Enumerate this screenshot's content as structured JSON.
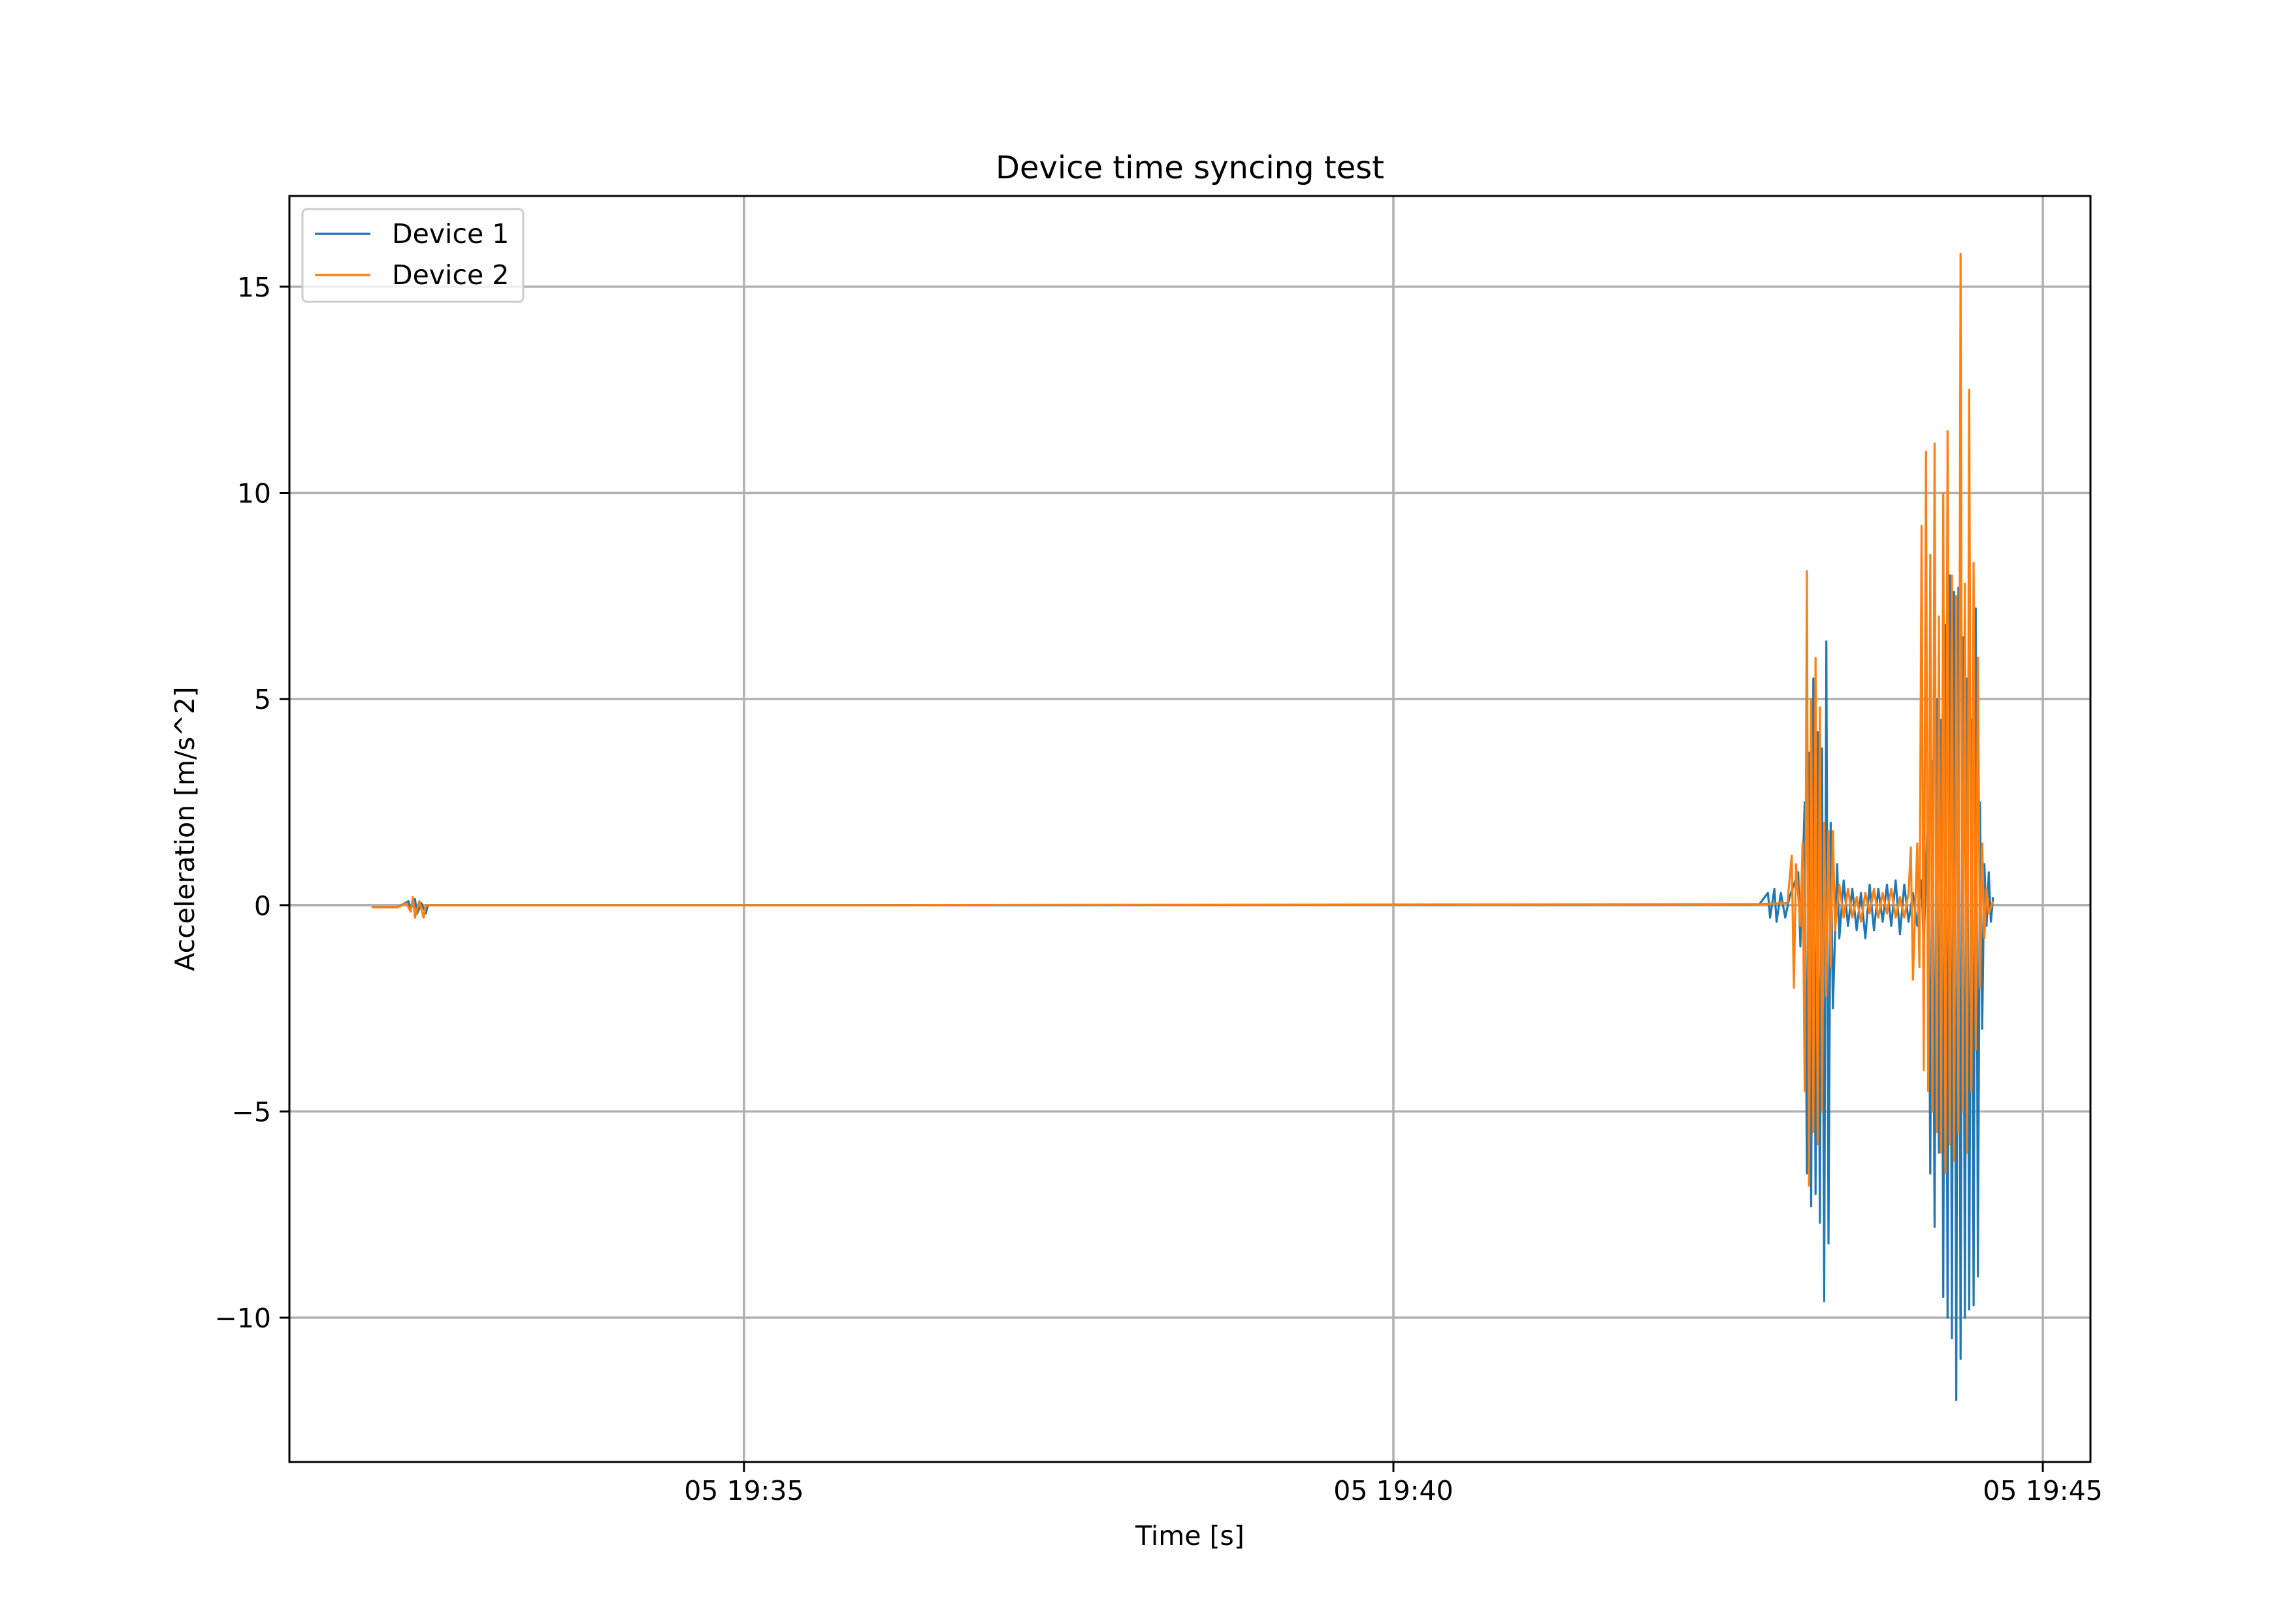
{
  "chart_data": {
    "type": "line",
    "title": "Device time syncing test",
    "xlabel": "Time [s]",
    "ylabel": "Acceleration [m/s^2]",
    "grid": true,
    "legend_position": "top-left",
    "xlim": [
      "05 19:31:30",
      "05 19:45:22"
    ],
    "ylim": [
      -13.5,
      17.2
    ],
    "x_ticks": [
      {
        "label": "05 19:35",
        "value": "05 19:35:00"
      },
      {
        "label": "05 19:40",
        "value": "05 19:40:00"
      },
      {
        "label": "05 19:45",
        "value": "05 19:45:00"
      }
    ],
    "y_ticks": [
      {
        "label": "−10",
        "value": -10
      },
      {
        "label": "−5",
        "value": -5
      },
      {
        "label": "0",
        "value": 0
      },
      {
        "label": "5",
        "value": 5
      },
      {
        "label": "10",
        "value": 10
      },
      {
        "label": "15",
        "value": 15
      }
    ],
    "series": [
      {
        "name": "Device 1",
        "color": "#1f77b4",
        "points": [
          [
            "05 19:32:08",
            -0.05
          ],
          [
            "05 19:32:20",
            -0.05
          ],
          [
            "05 19:32:25",
            0.1
          ],
          [
            "05 19:32:26",
            -0.1
          ],
          [
            "05 19:32:28",
            0.15
          ],
          [
            "05 19:32:29",
            -0.2
          ],
          [
            "05 19:32:31",
            0.05
          ],
          [
            "05 19:32:33",
            -0.2
          ],
          [
            "05 19:32:34",
            0.0
          ],
          [
            "05 19:36:00",
            0.0
          ],
          [
            "05 19:42:49",
            0.02
          ],
          [
            "05 19:42:53",
            0.3
          ],
          [
            "05 19:42:54",
            -0.3
          ],
          [
            "05 19:42:56",
            0.4
          ],
          [
            "05 19:42:57",
            -0.4
          ],
          [
            "05 19:42:59",
            0.3
          ],
          [
            "05 19:43:01",
            -0.3
          ],
          [
            "05 19:43:03",
            0.2
          ],
          [
            "05 19:43:07",
            0.8
          ],
          [
            "05 19:43:08",
            -1.0
          ],
          [
            "05 19:43:10",
            2.5
          ],
          [
            "05 19:43:11",
            -6.5
          ],
          [
            "05 19:43:12",
            3.7
          ],
          [
            "05 19:43:13",
            -7.3
          ],
          [
            "05 19:43:14",
            5.5
          ],
          [
            "05 19:43:15",
            -7.0
          ],
          [
            "05 19:43:16",
            4.2
          ],
          [
            "05 19:43:17",
            -7.7
          ],
          [
            "05 19:43:18",
            3.8
          ],
          [
            "05 19:43:19",
            -9.6
          ],
          [
            "05 19:43:20",
            6.4
          ],
          [
            "05 19:43:21",
            -8.2
          ],
          [
            "05 19:43:22",
            2.0
          ],
          [
            "05 19:43:23",
            -2.5
          ],
          [
            "05 19:43:25",
            1.0
          ],
          [
            "05 19:43:26",
            -0.8
          ],
          [
            "05 19:43:28",
            0.6
          ],
          [
            "05 19:43:30",
            -0.5
          ],
          [
            "05 19:43:32",
            0.4
          ],
          [
            "05 19:43:34",
            -0.6
          ],
          [
            "05 19:43:36",
            0.3
          ],
          [
            "05 19:43:38",
            -0.8
          ],
          [
            "05 19:43:40",
            0.5
          ],
          [
            "05 19:43:42",
            -0.6
          ],
          [
            "05 19:43:44",
            0.4
          ],
          [
            "05 19:43:46",
            -0.4
          ],
          [
            "05 19:43:48",
            0.5
          ],
          [
            "05 19:43:50",
            -0.5
          ],
          [
            "05 19:43:52",
            0.6
          ],
          [
            "05 19:43:54",
            -0.7
          ],
          [
            "05 19:43:56",
            0.5
          ],
          [
            "05 19:43:58",
            -0.4
          ],
          [
            "05 19:44:00",
            0.3
          ],
          [
            "05 19:44:02",
            -0.5
          ],
          [
            "05 19:44:04",
            0.6
          ],
          [
            "05 19:44:05",
            -1.0
          ],
          [
            "05 19:44:07",
            2.5
          ],
          [
            "05 19:44:08",
            -6.5
          ],
          [
            "05 19:44:09",
            3.5
          ],
          [
            "05 19:44:10",
            -7.8
          ],
          [
            "05 19:44:11",
            5.0
          ],
          [
            "05 19:44:12",
            -6.0
          ],
          [
            "05 19:44:13",
            4.5
          ],
          [
            "05 19:44:14",
            -9.5
          ],
          [
            "05 19:44:15",
            6.8
          ],
          [
            "05 19:44:16",
            -10.0
          ],
          [
            "05 19:44:17",
            8.0
          ],
          [
            "05 19:44:18",
            -10.5
          ],
          [
            "05 19:44:19",
            7.6
          ],
          [
            "05 19:44:20",
            -12.0
          ],
          [
            "05 19:44:21",
            7.7
          ],
          [
            "05 19:44:22",
            -11.0
          ],
          [
            "05 19:44:23",
            6.5
          ],
          [
            "05 19:44:24",
            -10.0
          ],
          [
            "05 19:44:25",
            5.5
          ],
          [
            "05 19:44:26",
            -9.8
          ],
          [
            "05 19:44:27",
            4.5
          ],
          [
            "05 19:44:28",
            -9.7
          ],
          [
            "05 19:44:29",
            7.2
          ],
          [
            "05 19:44:30",
            -9.0
          ],
          [
            "05 19:44:31",
            2.5
          ],
          [
            "05 19:44:32",
            -3.0
          ],
          [
            "05 19:44:33",
            1.0
          ],
          [
            "05 19:44:34",
            -0.5
          ],
          [
            "05 19:44:35",
            0.8
          ],
          [
            "05 19:44:36",
            -0.4
          ],
          [
            "05 19:44:37",
            0.2
          ]
        ]
      },
      {
        "name": "Device 2",
        "color": "#ff7f0e",
        "points": [
          [
            "05 19:32:08",
            -0.05
          ],
          [
            "05 19:32:20",
            -0.05
          ],
          [
            "05 19:32:24",
            0.05
          ],
          [
            "05 19:32:26",
            -0.15
          ],
          [
            "05 19:32:27",
            0.2
          ],
          [
            "05 19:32:28",
            -0.3
          ],
          [
            "05 19:32:30",
            0.1
          ],
          [
            "05 19:32:32",
            -0.3
          ],
          [
            "05 19:32:33",
            0.0
          ],
          [
            "05 19:36:00",
            0.0
          ],
          [
            "05 19:42:49",
            0.03
          ],
          [
            "05 19:43:02",
            0.05
          ],
          [
            "05 19:43:04",
            1.2
          ],
          [
            "05 19:43:05",
            -2.0
          ],
          [
            "05 19:43:06",
            1.0
          ],
          [
            "05 19:43:08",
            -0.5
          ],
          [
            "05 19:43:09",
            1.5
          ],
          [
            "05 19:43:10",
            -4.5
          ],
          [
            "05 19:43:11",
            8.1
          ],
          [
            "05 19:43:12",
            -6.8
          ],
          [
            "05 19:43:13",
            5.0
          ],
          [
            "05 19:43:14",
            -5.5
          ],
          [
            "05 19:43:15",
            6.0
          ],
          [
            "05 19:43:16",
            -5.8
          ],
          [
            "05 19:43:17",
            4.8
          ],
          [
            "05 19:43:18",
            -5.0
          ],
          [
            "05 19:43:19",
            2.0
          ],
          [
            "05 19:43:20",
            -2.2
          ],
          [
            "05 19:43:21",
            1.8
          ],
          [
            "05 19:43:22",
            -1.5
          ],
          [
            "05 19:43:23",
            1.8
          ],
          [
            "05 19:43:24",
            -0.6
          ],
          [
            "05 19:43:26",
            0.5
          ],
          [
            "05 19:43:28",
            -0.3
          ],
          [
            "05 19:43:30",
            0.4
          ],
          [
            "05 19:43:32",
            -0.3
          ],
          [
            "05 19:43:34",
            0.2
          ],
          [
            "05 19:43:36",
            -0.4
          ],
          [
            "05 19:43:38",
            0.3
          ],
          [
            "05 19:43:40",
            -0.2
          ],
          [
            "05 19:43:42",
            0.4
          ],
          [
            "05 19:43:44",
            -0.3
          ],
          [
            "05 19:43:46",
            0.3
          ],
          [
            "05 19:43:48",
            -0.2
          ],
          [
            "05 19:43:50",
            0.4
          ],
          [
            "05 19:43:52",
            -0.3
          ],
          [
            "05 19:43:54",
            0.2
          ],
          [
            "05 19:43:56",
            -0.3
          ],
          [
            "05 19:43:58",
            0.3
          ],
          [
            "05 19:43:59",
            1.4
          ],
          [
            "05 19:44:00",
            -1.8
          ],
          [
            "05 19:44:02",
            1.5
          ],
          [
            "05 19:44:03",
            -1.5
          ],
          [
            "05 19:44:04",
            9.2
          ],
          [
            "05 19:44:05",
            -4.0
          ],
          [
            "05 19:44:06",
            11.0
          ],
          [
            "05 19:44:07",
            -4.5
          ],
          [
            "05 19:44:08",
            8.5
          ],
          [
            "05 19:44:09",
            -5.0
          ],
          [
            "05 19:44:10",
            11.2
          ],
          [
            "05 19:44:11",
            -5.5
          ],
          [
            "05 19:44:12",
            7.0
          ],
          [
            "05 19:44:13",
            -6.0
          ],
          [
            "05 19:44:14",
            10.0
          ],
          [
            "05 19:44:15",
            -6.5
          ],
          [
            "05 19:44:16",
            11.5
          ],
          [
            "05 19:44:17",
            -5.8
          ],
          [
            "05 19:44:18",
            8.0
          ],
          [
            "05 19:44:19",
            -6.2
          ],
          [
            "05 19:44:20",
            7.5
          ],
          [
            "05 19:44:21",
            -5.5
          ],
          [
            "05 19:44:22",
            15.8
          ],
          [
            "05 19:44:23",
            -5.0
          ],
          [
            "05 19:44:24",
            7.8
          ],
          [
            "05 19:44:25",
            -6.0
          ],
          [
            "05 19:44:26",
            12.5
          ],
          [
            "05 19:44:27",
            -4.5
          ],
          [
            "05 19:44:28",
            8.3
          ],
          [
            "05 19:44:29",
            -3.5
          ],
          [
            "05 19:44:30",
            6.0
          ],
          [
            "05 19:44:31",
            -2.0
          ],
          [
            "05 19:44:32",
            1.5
          ],
          [
            "05 19:44:33",
            -0.8
          ],
          [
            "05 19:44:34",
            0.4
          ],
          [
            "05 19:44:35",
            -0.2
          ],
          [
            "05 19:44:37",
            0.1
          ]
        ]
      }
    ]
  }
}
